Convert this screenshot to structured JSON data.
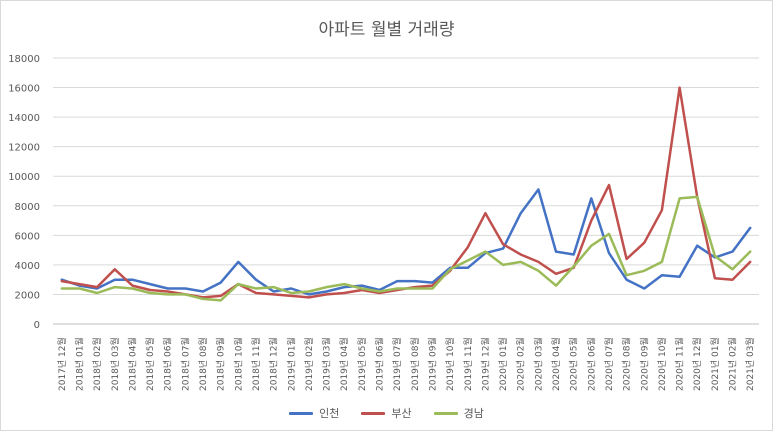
{
  "chart_data": {
    "type": "line",
    "title": "아파트 월별 거래량",
    "xlabel": "",
    "ylabel": "",
    "ylim": [
      0,
      18000
    ],
    "yticks": [
      0,
      2000,
      4000,
      6000,
      8000,
      10000,
      12000,
      14000,
      16000,
      18000
    ],
    "grid": true,
    "legend_position": "bottom",
    "categories": [
      "2017년 12월",
      "2018년 01월",
      "2018년 02월",
      "2018년 03월",
      "2018년 04월",
      "2018년 05월",
      "2018년 06월",
      "2018년 07월",
      "2018년 08월",
      "2018년 09월",
      "2018년 10월",
      "2018년 11월",
      "2018년 12월",
      "2019년 01월",
      "2019년 02월",
      "2019년 03월",
      "2019년 04월",
      "2019년 05월",
      "2019년 06월",
      "2019년 07월",
      "2019년 08월",
      "2019년 09월",
      "2019년 10월",
      "2019년 11월",
      "2019년 12월",
      "2020년 01월",
      "2020년 02월",
      "2020년 03월",
      "2020년 04월",
      "2020년 05월",
      "2020년 06월",
      "2020년 07월",
      "2020년 08월",
      "2020년 09월",
      "2020년 10월",
      "2020년 11월",
      "2020년 12월",
      "2021년 01월",
      "2021년 02월",
      "2021년 03월"
    ],
    "series": [
      {
        "name": "인천",
        "color": "#4472C4",
        "values": [
          3000,
          2600,
          2400,
          3000,
          3000,
          2700,
          2400,
          2400,
          2200,
          2800,
          4200,
          3000,
          2200,
          2400,
          2000,
          2200,
          2500,
          2600,
          2300,
          2900,
          2900,
          2800,
          3800,
          3800,
          4800,
          5100,
          7500,
          9100,
          4900,
          4700,
          8500,
          4800,
          3000,
          2400,
          3300,
          3200,
          5300,
          4500,
          4900,
          6500
        ]
      },
      {
        "name": "부산",
        "color": "#C0504D",
        "values": [
          2900,
          2700,
          2500,
          3700,
          2600,
          2300,
          2200,
          2000,
          1800,
          1900,
          2700,
          2100,
          2000,
          1900,
          1800,
          2000,
          2100,
          2300,
          2100,
          2300,
          2500,
          2600,
          3600,
          5200,
          7500,
          5400,
          4700,
          4200,
          3400,
          3800,
          7000,
          9400,
          4400,
          5500,
          7700,
          16000,
          8600,
          3100,
          3000,
          4200
        ]
      },
      {
        "name": "경남",
        "color": "#9BBB59",
        "values": [
          2400,
          2400,
          2100,
          2500,
          2400,
          2100,
          2000,
          2000,
          1700,
          1600,
          2700,
          2400,
          2500,
          2100,
          2200,
          2500,
          2700,
          2400,
          2200,
          2400,
          2400,
          2400,
          3700,
          4300,
          4900,
          4000,
          4200,
          3600,
          2600,
          3900,
          5300,
          6100,
          3300,
          3600,
          4200,
          8500,
          8600,
          4600,
          3700,
          4900
        ]
      }
    ]
  }
}
